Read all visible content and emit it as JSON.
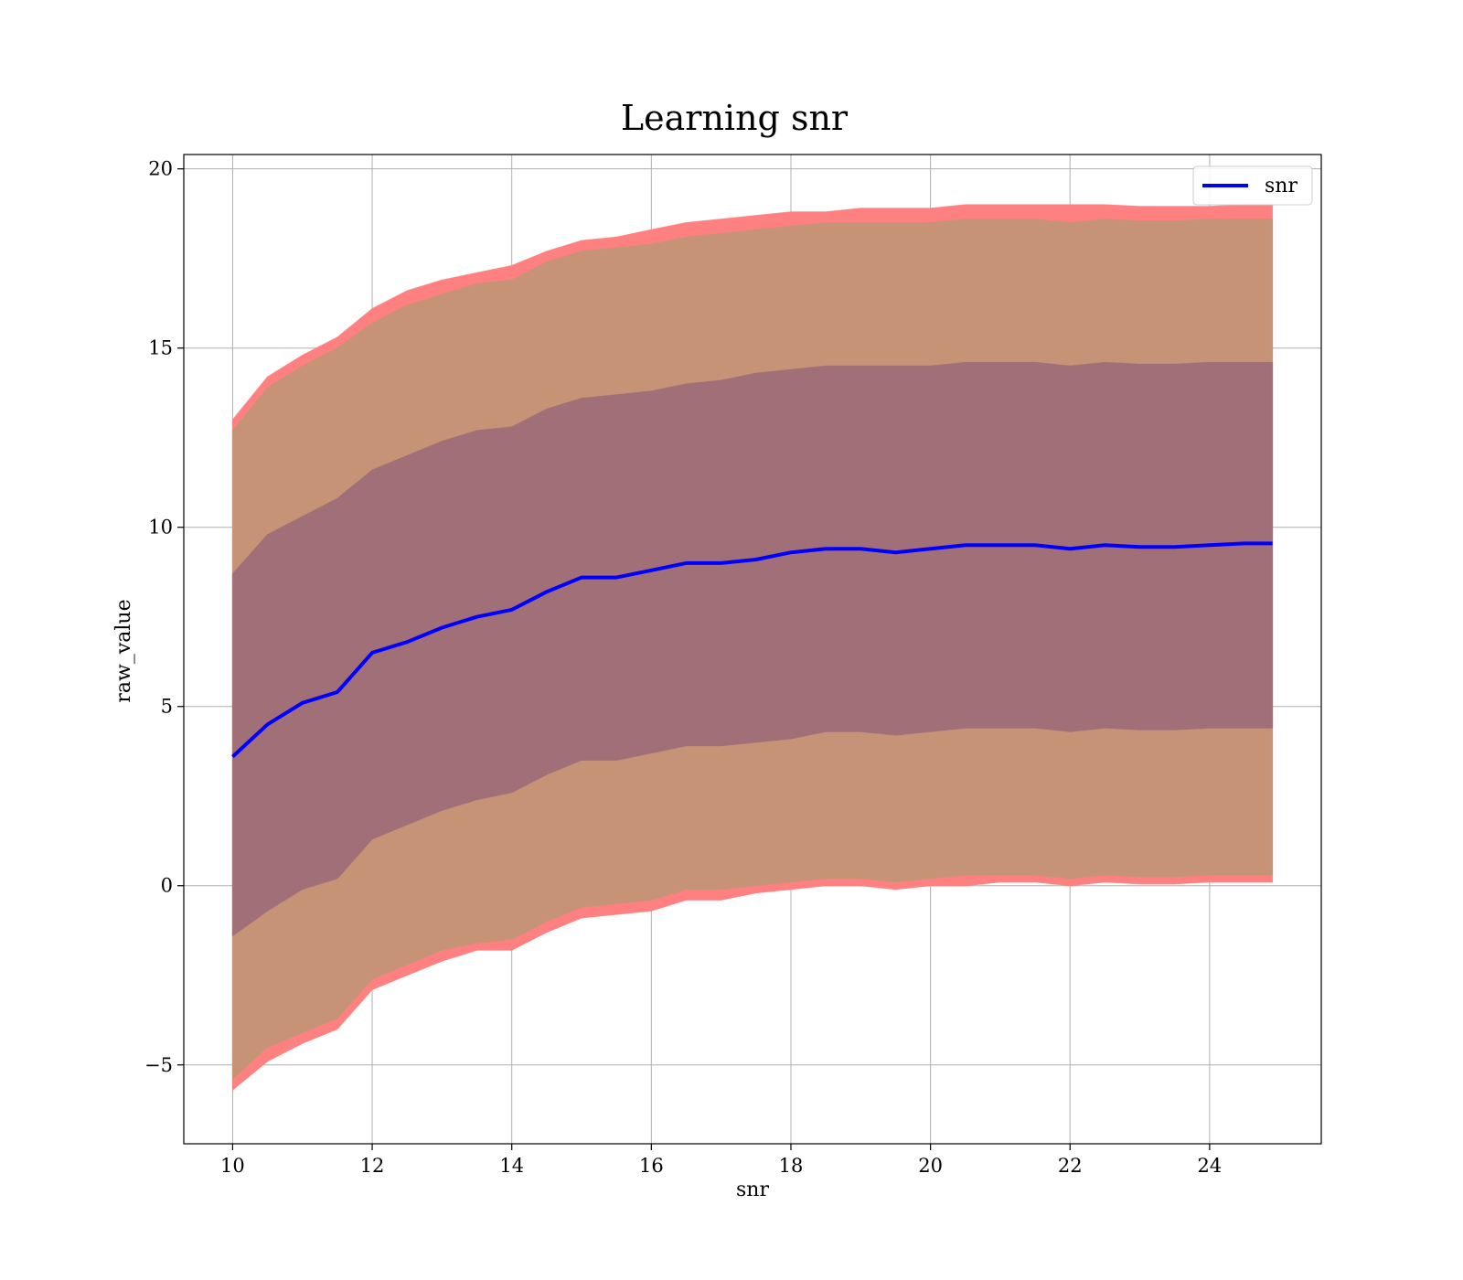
{
  "chart_data": {
    "type": "line",
    "title": "Learning snr",
    "xlabel": "snr",
    "ylabel": "raw_value",
    "xlim": [
      9.3,
      25.6
    ],
    "ylim": [
      -7.2,
      20.4
    ],
    "xticks": [
      10,
      12,
      14,
      16,
      18,
      20,
      22,
      24
    ],
    "yticks": [
      -5,
      0,
      5,
      10,
      15,
      20
    ],
    "ytick_labels": [
      "−5",
      "0",
      "5",
      "10",
      "15",
      "20"
    ],
    "grid": true,
    "legend": {
      "position": "top-right",
      "entries": [
        "snr"
      ]
    },
    "colors": {
      "line": "#0000ff",
      "outer_band": "#ff8080",
      "middle_band": "#c79377",
      "inner_band": "#a06f78",
      "grid": "#b0b0b0"
    },
    "x": [
      10.0,
      10.5,
      11.0,
      11.5,
      12.0,
      12.5,
      13.0,
      13.5,
      14.0,
      14.5,
      15.0,
      15.5,
      16.0,
      16.5,
      17.0,
      17.5,
      18.0,
      18.5,
      19.0,
      19.5,
      20.0,
      20.5,
      21.0,
      21.5,
      22.0,
      22.5,
      23.0,
      23.5,
      24.0,
      24.5,
      24.9
    ],
    "series": [
      {
        "name": "snr",
        "values": [
          3.6,
          4.5,
          5.1,
          5.4,
          6.5,
          6.8,
          7.2,
          7.5,
          7.7,
          8.2,
          8.6,
          8.6,
          8.8,
          9.0,
          9.0,
          9.1,
          9.3,
          9.4,
          9.4,
          9.3,
          9.4,
          9.5,
          9.5,
          9.5,
          9.4,
          9.5,
          9.45,
          9.45,
          9.5,
          9.55,
          9.55
        ]
      }
    ],
    "bands": [
      {
        "level": "outer",
        "upper": [
          13.0,
          14.2,
          14.8,
          15.3,
          16.1,
          16.6,
          16.9,
          17.1,
          17.3,
          17.7,
          18.0,
          18.1,
          18.3,
          18.5,
          18.6,
          18.7,
          18.8,
          18.8,
          18.9,
          18.9,
          18.9,
          19.0,
          19.0,
          19.0,
          19.0,
          19.0,
          18.95,
          18.95,
          18.95,
          19.0,
          19.0
        ],
        "lower": [
          -5.7,
          -4.9,
          -4.4,
          -4.0,
          -2.9,
          -2.5,
          -2.1,
          -1.8,
          -1.8,
          -1.3,
          -0.9,
          -0.8,
          -0.7,
          -0.4,
          -0.4,
          -0.2,
          -0.1,
          0.0,
          0.0,
          -0.1,
          0.0,
          0.0,
          0.1,
          0.1,
          0.0,
          0.1,
          0.05,
          0.05,
          0.1,
          0.1,
          0.1
        ]
      },
      {
        "level": "middle",
        "upper": [
          12.7,
          13.9,
          14.5,
          15.0,
          15.7,
          16.2,
          16.5,
          16.8,
          16.9,
          17.4,
          17.7,
          17.8,
          17.9,
          18.1,
          18.2,
          18.3,
          18.4,
          18.5,
          18.5,
          18.5,
          18.5,
          18.6,
          18.6,
          18.6,
          18.5,
          18.6,
          18.55,
          18.55,
          18.6,
          18.6,
          18.6
        ],
        "lower": [
          -5.4,
          -4.5,
          -4.1,
          -3.7,
          -2.6,
          -2.2,
          -1.8,
          -1.6,
          -1.5,
          -1.0,
          -0.6,
          -0.5,
          -0.4,
          -0.1,
          -0.1,
          0.0,
          0.1,
          0.2,
          0.2,
          0.1,
          0.2,
          0.3,
          0.3,
          0.3,
          0.2,
          0.3,
          0.25,
          0.25,
          0.3,
          0.3,
          0.3
        ]
      },
      {
        "level": "inner",
        "upper": [
          8.7,
          9.8,
          10.3,
          10.8,
          11.6,
          12.0,
          12.4,
          12.7,
          12.8,
          13.3,
          13.6,
          13.7,
          13.8,
          14.0,
          14.1,
          14.3,
          14.4,
          14.5,
          14.5,
          14.5,
          14.5,
          14.6,
          14.6,
          14.6,
          14.5,
          14.6,
          14.55,
          14.55,
          14.6,
          14.6,
          14.6
        ],
        "lower": [
          -1.4,
          -0.7,
          -0.1,
          0.2,
          1.3,
          1.7,
          2.1,
          2.4,
          2.6,
          3.1,
          3.5,
          3.5,
          3.7,
          3.9,
          3.9,
          4.0,
          4.1,
          4.3,
          4.3,
          4.2,
          4.3,
          4.4,
          4.4,
          4.4,
          4.3,
          4.4,
          4.35,
          4.35,
          4.4,
          4.4,
          4.4
        ]
      }
    ]
  }
}
